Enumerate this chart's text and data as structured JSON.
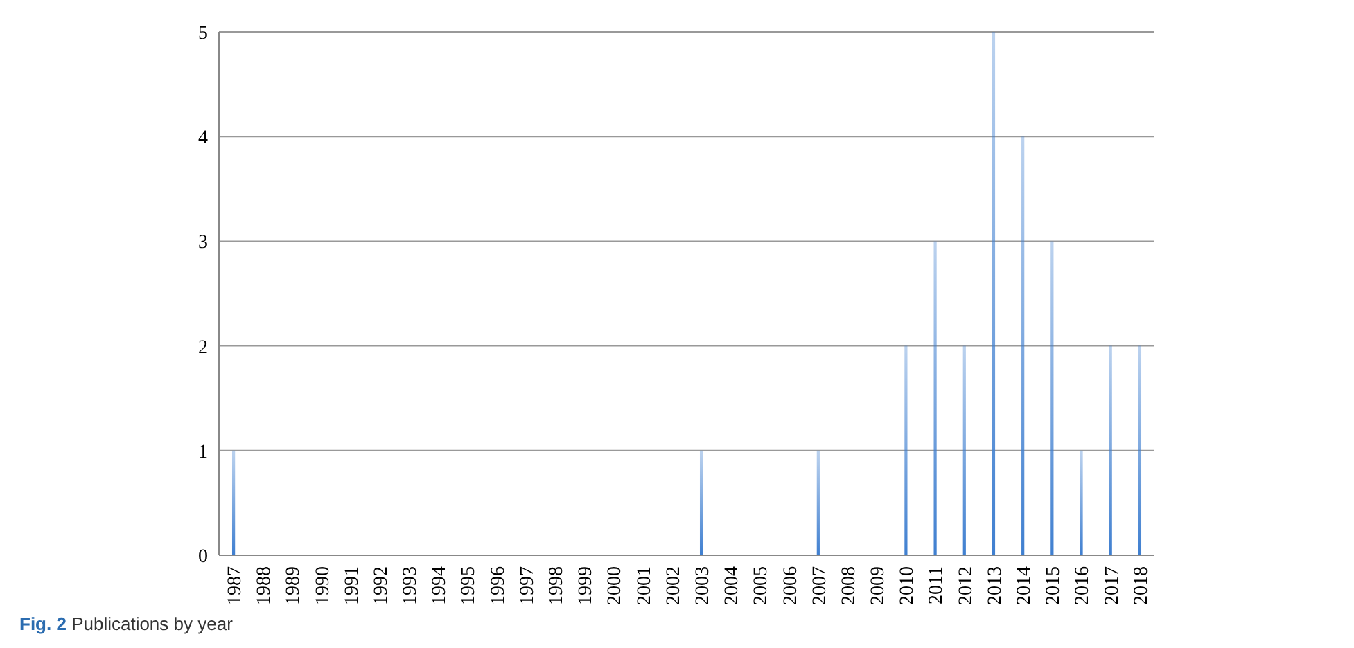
{
  "chart_data": {
    "type": "bar",
    "categories": [
      "1987",
      "1988",
      "1989",
      "1990",
      "1991",
      "1992",
      "1993",
      "1994",
      "1995",
      "1996",
      "1997",
      "1998",
      "1999",
      "2000",
      "2001",
      "2002",
      "2003",
      "2004",
      "2005",
      "2006",
      "2007",
      "2008",
      "2009",
      "2010",
      "2011",
      "2012",
      "2013",
      "2014",
      "2015",
      "2016",
      "2017",
      "2018"
    ],
    "values": [
      1,
      0,
      0,
      0,
      0,
      0,
      0,
      0,
      0,
      0,
      0,
      0,
      0,
      0,
      0,
      0,
      1,
      0,
      0,
      0,
      1,
      0,
      0,
      2,
      3,
      2,
      5,
      4,
      3,
      1,
      2,
      2
    ],
    "color": "#3f7fd0",
    "ylim": [
      0,
      5
    ],
    "yticks": [
      0,
      1,
      2,
      3,
      4,
      5
    ],
    "grid": "y",
    "annotations": [
      "Fig. 2 Publications by year"
    ]
  }
}
